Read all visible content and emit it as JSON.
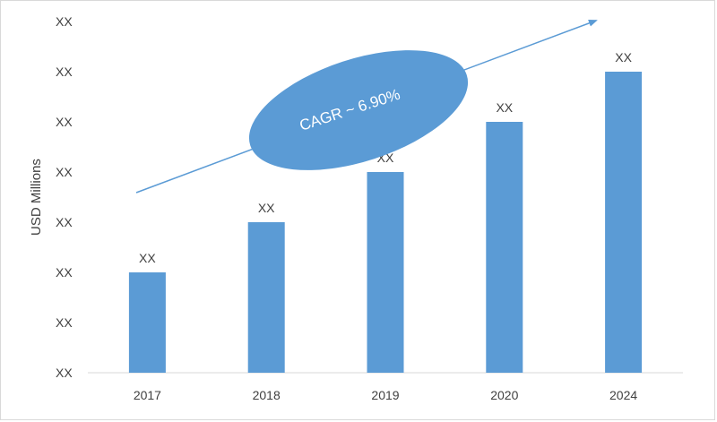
{
  "chart_data": {
    "type": "bar",
    "title": "",
    "xlabel": "",
    "ylabel": "USD Millions",
    "categories": [
      "2017",
      "2018",
      "2019",
      "2020",
      "2024"
    ],
    "values": [
      2,
      3,
      4,
      5,
      6
    ],
    "data_labels": [
      "XX",
      "XX",
      "XX",
      "XX",
      "XX"
    ],
    "ylim": [
      0,
      7
    ],
    "y_tick_labels": [
      "XX",
      "XX",
      "XX",
      "XX",
      "XX",
      "XX",
      "XX",
      "XX"
    ],
    "bar_color": "#5b9bd5",
    "grid": false,
    "legend": "none",
    "annotation": {
      "text": "CAGR ~ 6.90%",
      "shape": "ellipse with upward trend arrow",
      "color": "#5b9bd5"
    }
  }
}
